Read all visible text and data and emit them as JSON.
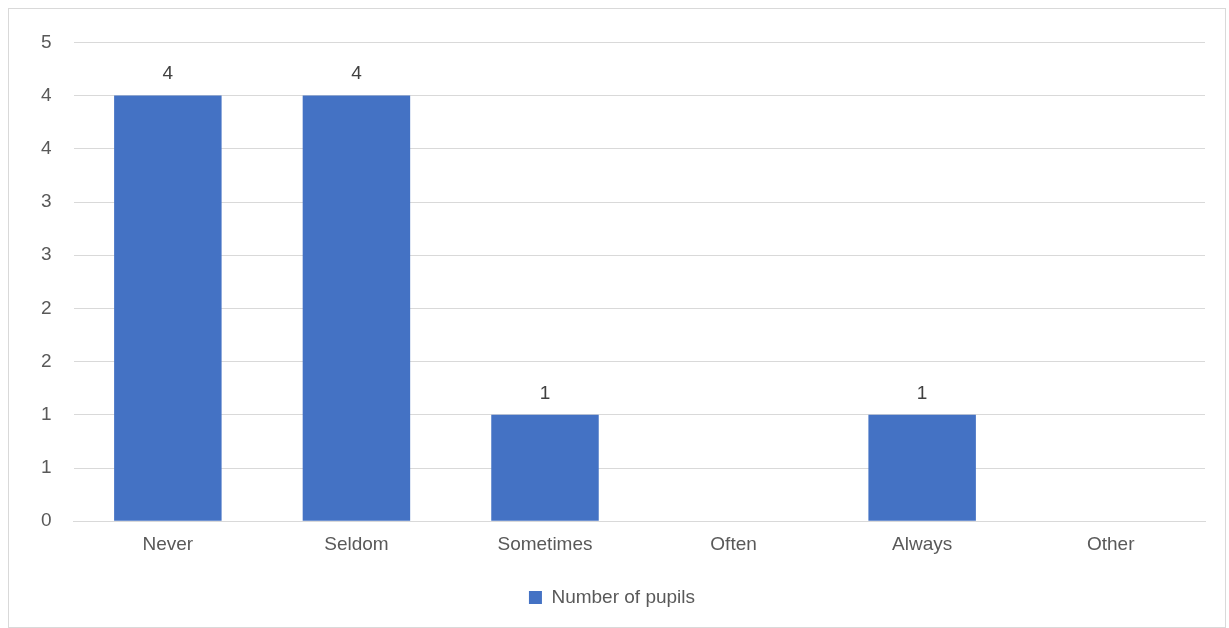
{
  "chart_data": {
    "type": "bar",
    "categories": [
      "Never",
      "Seldom",
      "Sometimes",
      "Often",
      "Always",
      "Other"
    ],
    "series": [
      {
        "name": "Number of pupils",
        "color": "#4472c4",
        "values": [
          4,
          4,
          1,
          null,
          1,
          null
        ]
      }
    ],
    "ylim": [
      0,
      4.5
    ],
    "yticks": [
      0,
      {
        "value": 0.5,
        "label": "1"
      },
      1,
      {
        "value": 1.5,
        "label": "2"
      },
      2,
      {
        "value": 2.5,
        "label": "3"
      },
      3,
      {
        "value": 3.5,
        "label": "4"
      },
      4,
      {
        "value": 4.5,
        "label": "5"
      }
    ],
    "grid": "y",
    "legend": "bottom",
    "data_labels": true
  }
}
